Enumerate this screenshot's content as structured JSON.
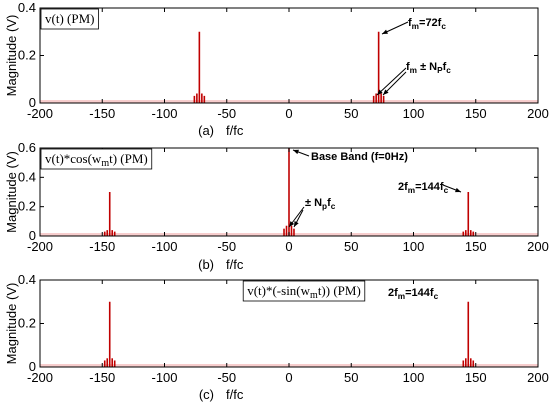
{
  "chart_data": [
    {
      "type": "bar",
      "title": "",
      "legend": "v(t) (PM)",
      "legend_placement": "top-left",
      "caption": "(a)",
      "xlabel": "f/fc",
      "ylabel": "Magnitude (V)",
      "xlim": [
        -200,
        200
      ],
      "ylim": [
        0,
        0.4
      ],
      "xticks": [
        -200,
        -150,
        -100,
        -50,
        0,
        50,
        100,
        150,
        200
      ],
      "yticks": [
        0,
        0.2,
        0.4
      ],
      "grid": false,
      "stems": [
        {
          "x": -76,
          "y": 0.03
        },
        {
          "x": -74,
          "y": 0.04
        },
        {
          "x": -72,
          "y": 0.3
        },
        {
          "x": -70,
          "y": 0.04
        },
        {
          "x": -68,
          "y": 0.03
        },
        {
          "x": 68,
          "y": 0.03
        },
        {
          "x": 70,
          "y": 0.04
        },
        {
          "x": 72,
          "y": 0.3
        },
        {
          "x": 74,
          "y": 0.04
        },
        {
          "x": 76,
          "y": 0.03
        }
      ],
      "annotations": [
        {
          "text": "f",
          "sub": "m",
          "rest": "=72f",
          "sub2": "c",
          "x": 72,
          "y": 0.3
        },
        {
          "text": "f",
          "sub": "m",
          "rest": " ± N",
          "sub2": "P",
          "rest2": "f",
          "sub3": "c",
          "x": 72,
          "y": 0.04
        }
      ]
    },
    {
      "type": "bar",
      "title": "",
      "legend": "v(t)*cos(w",
      "legend_sub": "m",
      "legend_rest": "t) (PM)",
      "legend_placement": "top-left",
      "caption": "(b)",
      "xlabel": "f/fc",
      "ylabel": "Magnitude (V)",
      "xlim": [
        -200,
        200
      ],
      "ylim": [
        0,
        0.6
      ],
      "xticks": [
        -200,
        -150,
        -100,
        -50,
        0,
        50,
        100,
        150,
        200
      ],
      "yticks": [
        0,
        0.2,
        0.4,
        0.6
      ],
      "grid": false,
      "stems": [
        {
          "x": -148,
          "y": 0.03
        },
        {
          "x": -146,
          "y": 0.04
        },
        {
          "x": -144,
          "y": 0.3
        },
        {
          "x": -142,
          "y": 0.04
        },
        {
          "x": -140,
          "y": 0.03
        },
        {
          "x": -4,
          "y": 0.05
        },
        {
          "x": -2,
          "y": 0.07
        },
        {
          "x": 0,
          "y": 0.6
        },
        {
          "x": 2,
          "y": 0.07
        },
        {
          "x": 4,
          "y": 0.05
        },
        {
          "x": 140,
          "y": 0.03
        },
        {
          "x": 142,
          "y": 0.04
        },
        {
          "x": 144,
          "y": 0.3
        },
        {
          "x": 146,
          "y": 0.04
        },
        {
          "x": 148,
          "y": 0.03
        }
      ],
      "annotations": [
        {
          "text": "Base Band (f=0Hz)",
          "x": 0,
          "y": 0.6
        },
        {
          "text": "± N",
          "sub": "p",
          "rest": "f",
          "sub2": "c",
          "x": 0,
          "y": 0.07
        },
        {
          "text": "2f",
          "sub": "m",
          "rest": "=144f",
          "sub2": "c",
          "x": 144,
          "y": 0.3
        }
      ]
    },
    {
      "type": "bar",
      "title": "",
      "legend": "v(t)*(-sin(w",
      "legend_sub": "m",
      "legend_rest": "t)) (PM)",
      "legend_placement": "top-center",
      "caption": "(c)",
      "xlabel": "f/fc",
      "ylabel": "Magnitude (V)",
      "xlim": [
        -200,
        200
      ],
      "ylim": [
        0,
        0.4
      ],
      "xticks": [
        -200,
        -150,
        -100,
        -50,
        0,
        50,
        100,
        150,
        200
      ],
      "yticks": [
        0,
        0.2,
        0.4
      ],
      "grid": false,
      "stems": [
        {
          "x": -148,
          "y": 0.03
        },
        {
          "x": -146,
          "y": 0.04
        },
        {
          "x": -144,
          "y": 0.3
        },
        {
          "x": -142,
          "y": 0.04
        },
        {
          "x": -140,
          "y": 0.03
        },
        {
          "x": 140,
          "y": 0.03
        },
        {
          "x": 142,
          "y": 0.04
        },
        {
          "x": 144,
          "y": 0.3
        },
        {
          "x": 146,
          "y": 0.04
        },
        {
          "x": 148,
          "y": 0.03
        }
      ],
      "annotations": [
        {
          "text": "2f",
          "sub": "m",
          "rest": "=144f",
          "sub2": "c",
          "x": 144,
          "y": 0.3
        }
      ]
    }
  ],
  "colors": {
    "stem": "#c00000",
    "noise": "#f4b8b8",
    "axis": "#000000"
  }
}
